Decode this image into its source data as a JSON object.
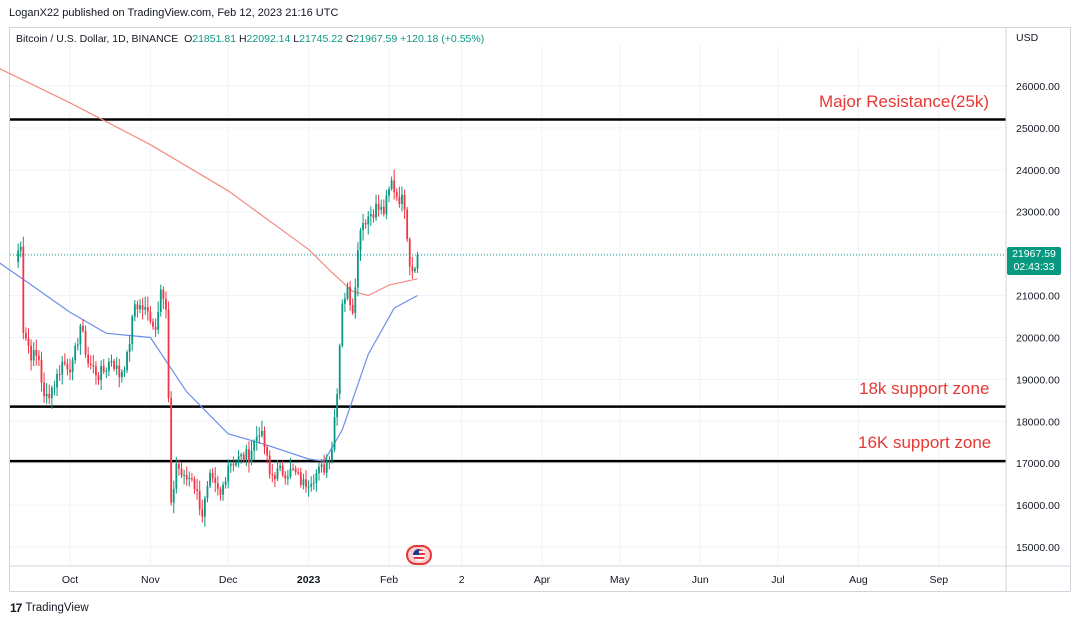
{
  "header": {
    "published_by": "LoganX22 published on TradingView.com, Feb 12, 2023 21:16 UTC"
  },
  "legend": {
    "symbol": "Bitcoin / U.S. Dollar, 1D, BINANCE",
    "open_label": "O",
    "open": "21851.81",
    "high_label": "H",
    "high": "22092.14",
    "low_label": "L",
    "low": "21745.22",
    "close_label": "C",
    "close": "21967.59",
    "change": "+120.18 (+0.55%)"
  },
  "currency": "USD",
  "price_tag": {
    "price": "21967.59",
    "countdown": "02:43:33"
  },
  "footer": {
    "brand": "TradingView"
  },
  "colors": {
    "up": "#089981",
    "down": "#f23645",
    "ma_red": "#f28b82",
    "ma_blue": "#6d8fe8",
    "annotation": "#e53935"
  },
  "chart_data": {
    "type": "candlestick",
    "ylim": [
      14500,
      27000
    ],
    "y_ticks": [
      "15000.00",
      "16000.00",
      "17000.00",
      "18000.00",
      "19000.00",
      "20000.00",
      "21000.00",
      "22000.00",
      "23000.00",
      "24000.00",
      "25000.00",
      "26000.00"
    ],
    "x_ticks": [
      {
        "label": "Oct",
        "date": "2022-10-01"
      },
      {
        "label": "Nov",
        "date": "2022-11-01"
      },
      {
        "label": "Dec",
        "date": "2022-12-01"
      },
      {
        "label": "2023",
        "date": "2023-01-01"
      },
      {
        "label": "Feb",
        "date": "2023-02-01"
      },
      {
        "label": "2",
        "date": "2023-03-01"
      },
      {
        "label": "Apr",
        "date": "2023-04-01"
      },
      {
        "label": "May",
        "date": "2023-05-01"
      },
      {
        "label": "Jun",
        "date": "2023-06-01"
      },
      {
        "label": "Jul",
        "date": "2023-07-01"
      },
      {
        "label": "Aug",
        "date": "2023-08-01"
      },
      {
        "label": "Sep",
        "date": "2023-09-01"
      }
    ],
    "levels": [
      {
        "label": "Major Resistance(25k)",
        "value": 25200
      },
      {
        "label": "18k support zone",
        "value": 18350
      },
      {
        "label": "16K support zone",
        "value": 17050
      }
    ],
    "last_price": 21967.59,
    "closes": [
      {
        "date": "2022-09-10",
        "close": 21800
      },
      {
        "date": "2022-09-12",
        "close": 22300
      },
      {
        "date": "2022-09-13",
        "close": 20200
      },
      {
        "date": "2022-09-16",
        "close": 19600
      },
      {
        "date": "2022-09-19",
        "close": 19500
      },
      {
        "date": "2022-09-21",
        "close": 18500
      },
      {
        "date": "2022-09-25",
        "close": 18900
      },
      {
        "date": "2022-09-28",
        "close": 19400
      },
      {
        "date": "2022-10-02",
        "close": 19300
      },
      {
        "date": "2022-10-05",
        "close": 20300
      },
      {
        "date": "2022-10-08",
        "close": 19400
      },
      {
        "date": "2022-10-12",
        "close": 19100
      },
      {
        "date": "2022-10-14",
        "close": 19200
      },
      {
        "date": "2022-10-17",
        "close": 19500
      },
      {
        "date": "2022-10-20",
        "close": 19100
      },
      {
        "date": "2022-10-23",
        "close": 19500
      },
      {
        "date": "2022-10-26",
        "close": 20800
      },
      {
        "date": "2022-10-29",
        "close": 20700
      },
      {
        "date": "2022-11-01",
        "close": 20500
      },
      {
        "date": "2022-11-03",
        "close": 20200
      },
      {
        "date": "2022-11-05",
        "close": 21300
      },
      {
        "date": "2022-11-07",
        "close": 20600
      },
      {
        "date": "2022-11-08",
        "close": 18500
      },
      {
        "date": "2022-11-09",
        "close": 15900
      },
      {
        "date": "2022-11-11",
        "close": 17000
      },
      {
        "date": "2022-11-14",
        "close": 16600
      },
      {
        "date": "2022-11-17",
        "close": 16700
      },
      {
        "date": "2022-11-21",
        "close": 15800
      },
      {
        "date": "2022-11-24",
        "close": 16600
      },
      {
        "date": "2022-11-28",
        "close": 16200
      },
      {
        "date": "2022-12-01",
        "close": 17000
      },
      {
        "date": "2022-12-05",
        "close": 17100
      },
      {
        "date": "2022-12-09",
        "close": 17200
      },
      {
        "date": "2022-12-13",
        "close": 17800
      },
      {
        "date": "2022-12-15",
        "close": 17400
      },
      {
        "date": "2022-12-17",
        "close": 16700
      },
      {
        "date": "2022-12-21",
        "close": 16800
      },
      {
        "date": "2022-12-26",
        "close": 16800
      },
      {
        "date": "2022-12-30",
        "close": 16500
      },
      {
        "date": "2023-01-03",
        "close": 16700
      },
      {
        "date": "2023-01-07",
        "close": 16900
      },
      {
        "date": "2023-01-10",
        "close": 17400
      },
      {
        "date": "2023-01-12",
        "close": 18800
      },
      {
        "date": "2023-01-14",
        "close": 20900
      },
      {
        "date": "2023-01-16",
        "close": 21100
      },
      {
        "date": "2023-01-18",
        "close": 20700
      },
      {
        "date": "2023-01-21",
        "close": 22700
      },
      {
        "date": "2023-01-24",
        "close": 22900
      },
      {
        "date": "2023-01-27",
        "close": 23100
      },
      {
        "date": "2023-01-30",
        "close": 23000
      },
      {
        "date": "2023-02-02",
        "close": 23700
      },
      {
        "date": "2023-02-04",
        "close": 23400
      },
      {
        "date": "2023-02-07",
        "close": 23200
      },
      {
        "date": "2023-02-09",
        "close": 21800
      },
      {
        "date": "2023-02-10",
        "close": 21650
      },
      {
        "date": "2023-02-12",
        "close": 21967.59
      }
    ],
    "ma_red": [
      {
        "date": "2022-09-01",
        "value": 26500
      },
      {
        "date": "2022-10-01",
        "value": 25600
      },
      {
        "date": "2022-11-01",
        "value": 24600
      },
      {
        "date": "2022-12-01",
        "value": 23500
      },
      {
        "date": "2023-01-01",
        "value": 22100
      },
      {
        "date": "2023-01-10",
        "value": 21550
      },
      {
        "date": "2023-01-18",
        "value": 21100
      },
      {
        "date": "2023-01-24",
        "value": 21000
      },
      {
        "date": "2023-02-01",
        "value": 21250
      },
      {
        "date": "2023-02-12",
        "value": 21400
      }
    ],
    "ma_blue": [
      {
        "date": "2022-09-01",
        "value": 21900
      },
      {
        "date": "2022-09-15",
        "value": 21300
      },
      {
        "date": "2022-10-01",
        "value": 20600
      },
      {
        "date": "2022-10-15",
        "value": 20100
      },
      {
        "date": "2022-11-01",
        "value": 20000
      },
      {
        "date": "2022-11-15",
        "value": 18700
      },
      {
        "date": "2022-12-01",
        "value": 17700
      },
      {
        "date": "2022-12-15",
        "value": 17450
      },
      {
        "date": "2023-01-01",
        "value": 17100
      },
      {
        "date": "2023-01-07",
        "value": 17050
      },
      {
        "date": "2023-01-14",
        "value": 17800
      },
      {
        "date": "2023-01-24",
        "value": 19600
      },
      {
        "date": "2023-02-03",
        "value": 20700
      },
      {
        "date": "2023-02-12",
        "value": 21000
      }
    ]
  }
}
